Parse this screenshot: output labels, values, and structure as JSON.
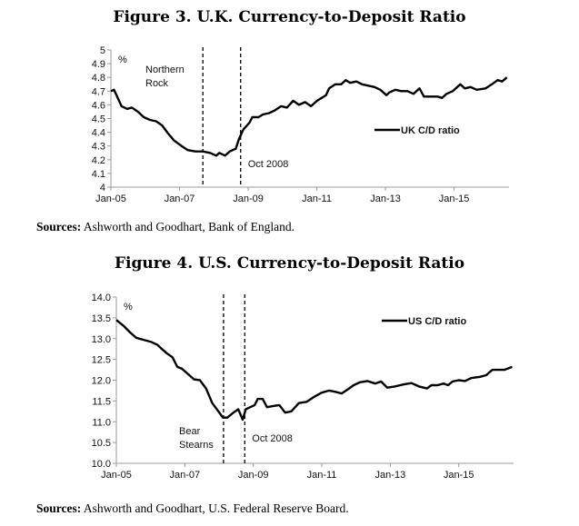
{
  "chart_data": [
    {
      "type": "line",
      "title": "Figure 3.  U.K. Currency-to-Deposit Ratio",
      "ylabel": "%",
      "xlabel": "",
      "ylim": [
        4,
        5
      ],
      "yticks": [
        "4",
        "4.1",
        "4.2",
        "4.3",
        "4.4",
        "4.5",
        "4.6",
        "4.7",
        "4.8",
        "4.9",
        "5"
      ],
      "yvals": [
        4,
        4.1,
        4.2,
        4.3,
        4.4,
        4.5,
        4.6,
        4.7,
        4.8,
        4.9,
        5
      ],
      "xlim": [
        2005,
        2016.6
      ],
      "xticks": [
        "Jan-05",
        "Jan-07",
        "Jan-09",
        "Jan-11",
        "Jan-13",
        "Jan-15"
      ],
      "xtickvals": [
        2005,
        2007,
        2009,
        2011,
        2013,
        2015
      ],
      "legend": "UK C/D ratio",
      "legend_position": "center-right",
      "annotations": [
        {
          "label": "Northern Rock",
          "x": 2007.68
        },
        {
          "label": "Oct 2008",
          "x": 2008.78
        }
      ],
      "series": [
        {
          "name": "UK C/D ratio",
          "x": [
            2005.0,
            2005.09,
            2005.31,
            2005.48,
            2005.61,
            2005.79,
            2005.96,
            2006.14,
            2006.32,
            2006.49,
            2006.67,
            2006.84,
            2007.06,
            2007.24,
            2007.46,
            2007.68,
            2007.89,
            2008.07,
            2008.16,
            2008.33,
            2008.46,
            2008.64,
            2008.73,
            2008.86,
            2009.04,
            2009.12,
            2009.3,
            2009.43,
            2009.61,
            2009.78,
            2009.96,
            2010.13,
            2010.31,
            2010.48,
            2010.66,
            2010.83,
            2011.01,
            2011.14,
            2011.27,
            2011.36,
            2011.54,
            2011.71,
            2011.84,
            2011.97,
            2012.15,
            2012.32,
            2012.5,
            2012.68,
            2012.85,
            2013.03,
            2013.11,
            2013.29,
            2013.46,
            2013.64,
            2013.82,
            2013.99,
            2014.12,
            2014.34,
            2014.52,
            2014.65,
            2014.78,
            2014.96,
            2015.18,
            2015.31,
            2015.48,
            2015.66,
            2015.92,
            2016.1,
            2016.27,
            2016.4,
            2016.54
          ],
          "y": [
            4.7,
            4.71,
            4.59,
            4.57,
            4.58,
            4.55,
            4.51,
            4.49,
            4.48,
            4.45,
            4.39,
            4.34,
            4.3,
            4.27,
            4.26,
            4.26,
            4.25,
            4.23,
            4.25,
            4.23,
            4.26,
            4.28,
            4.35,
            4.42,
            4.47,
            4.51,
            4.51,
            4.53,
            4.54,
            4.56,
            4.59,
            4.58,
            4.63,
            4.6,
            4.62,
            4.59,
            4.63,
            4.65,
            4.67,
            4.72,
            4.75,
            4.75,
            4.78,
            4.76,
            4.77,
            4.75,
            4.74,
            4.73,
            4.71,
            4.67,
            4.69,
            4.71,
            4.7,
            4.7,
            4.68,
            4.72,
            4.66,
            4.66,
            4.66,
            4.65,
            4.68,
            4.7,
            4.75,
            4.72,
            4.73,
            4.71,
            4.72,
            4.75,
            4.78,
            4.77,
            4.8
          ]
        }
      ],
      "source_label": "Sources:",
      "source_text": " Ashworth and Goodhart, Bank of England."
    },
    {
      "type": "line",
      "title": "Figure 4.  U.S. Currency-to-Deposit Ratio",
      "ylabel": "%",
      "xlabel": "",
      "ylim": [
        10,
        14
      ],
      "yticks": [
        "10.0",
        "10.5",
        "11.0",
        "11.5",
        "12.0",
        "12.5",
        "13.0",
        "13.5",
        "14.0"
      ],
      "yvals": [
        10,
        10.5,
        11,
        11.5,
        12,
        12.5,
        13,
        13.5,
        14
      ],
      "xlim": [
        2005,
        2016.6
      ],
      "xticks": [
        "Jan-05",
        "Jan-07",
        "Jan-09",
        "Jan-11",
        "Jan-13",
        "Jan-15"
      ],
      "xtickvals": [
        2005,
        2007,
        2009,
        2011,
        2013,
        2015
      ],
      "legend": "US C/D ratio",
      "legend_position": "top-right",
      "annotations": [
        {
          "label": "Bear Stearns",
          "x": 2008.13
        },
        {
          "label": "Oct 2008",
          "x": 2008.75
        }
      ],
      "series": [
        {
          "name": "US C/D ratio",
          "x": [
            2005.0,
            2005.22,
            2005.4,
            2005.58,
            2005.8,
            2006.02,
            2006.2,
            2006.29,
            2006.47,
            2006.64,
            2006.78,
            2006.91,
            2007.09,
            2007.27,
            2007.44,
            2007.62,
            2007.8,
            2007.98,
            2008.11,
            2008.24,
            2008.42,
            2008.56,
            2008.64,
            2008.69,
            2008.78,
            2008.91,
            2009.04,
            2009.13,
            2009.27,
            2009.4,
            2009.58,
            2009.76,
            2009.93,
            2010.11,
            2010.33,
            2010.56,
            2010.78,
            2011.0,
            2011.22,
            2011.4,
            2011.58,
            2011.76,
            2011.93,
            2012.11,
            2012.33,
            2012.56,
            2012.73,
            2012.91,
            2013.13,
            2013.4,
            2013.62,
            2013.84,
            2014.07,
            2014.2,
            2014.38,
            2014.56,
            2014.69,
            2014.82,
            2015.0,
            2015.18,
            2015.36,
            2015.62,
            2015.8,
            2015.98,
            2016.16,
            2016.33,
            2016.56
          ],
          "y": [
            13.45,
            13.3,
            13.15,
            13.02,
            12.97,
            12.92,
            12.85,
            12.78,
            12.65,
            12.55,
            12.32,
            12.28,
            12.15,
            12.02,
            12.0,
            11.8,
            11.45,
            11.25,
            11.1,
            11.1,
            11.22,
            11.3,
            11.15,
            11.05,
            11.3,
            11.35,
            11.4,
            11.55,
            11.55,
            11.35,
            11.38,
            11.4,
            11.22,
            11.25,
            11.45,
            11.48,
            11.6,
            11.7,
            11.75,
            11.72,
            11.68,
            11.78,
            11.88,
            11.95,
            11.98,
            11.92,
            11.97,
            11.82,
            11.85,
            11.9,
            11.93,
            11.85,
            11.8,
            11.88,
            11.88,
            11.92,
            11.88,
            11.97,
            12.0,
            11.98,
            12.05,
            12.08,
            12.12,
            12.25,
            12.25,
            12.25,
            12.32
          ]
        }
      ],
      "source_label": "Sources:",
      "source_text": " Ashworth and Goodhart, U.S. Federal Reserve Board."
    }
  ]
}
